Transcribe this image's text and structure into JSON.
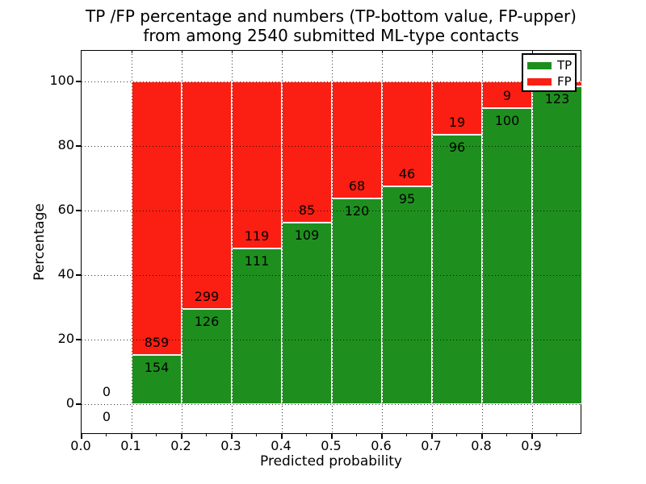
{
  "chart_data": {
    "type": "bar",
    "variant": "stacked-percentage",
    "title_lines": [
      "TP /FP percentage and numbers (TP-bottom value, FP-upper)",
      "from among 2540 submitted ML-type contacts"
    ],
    "xlabel": "Predicted probability",
    "ylabel": "Percentage",
    "xlim": [
      0.0,
      1.0
    ],
    "ylim": [
      -10,
      110
    ],
    "x_tick_labels": [
      "0.0",
      "0.1",
      "0.2",
      "0.3",
      "0.4",
      "0.5",
      "0.6",
      "0.7",
      "0.8",
      "0.9"
    ],
    "y_tick_values": [
      0,
      20,
      40,
      60,
      80,
      100
    ],
    "grid": "dotted",
    "legend": {
      "position": "upper right",
      "entries": [
        {
          "label": "TP",
          "color": "#1e8f1e"
        },
        {
          "label": "FP",
          "color": "#fb1e13"
        }
      ]
    },
    "colors": {
      "tp": "#1e8f1e",
      "fp": "#fb1e13"
    },
    "bins": [
      {
        "x_start": 0.0,
        "range": "0.0-0.1",
        "tp_count_label": "0",
        "fp_count_label": "0",
        "tp_pct": 0,
        "fp_pct": 0
      },
      {
        "x_start": 0.1,
        "range": "0.1-0.2",
        "tp_count_label": "154",
        "fp_count_label": "859",
        "tp_pct": 15.2,
        "fp_pct": 84.8
      },
      {
        "x_start": 0.2,
        "range": "0.2-0.3",
        "tp_count_label": "126",
        "fp_count_label": "299",
        "tp_pct": 29.6,
        "fp_pct": 70.4
      },
      {
        "x_start": 0.3,
        "range": "0.3-0.4",
        "tp_count_label": "111",
        "fp_count_label": "119",
        "tp_pct": 48.3,
        "fp_pct": 51.7
      },
      {
        "x_start": 0.4,
        "range": "0.4-0.5",
        "tp_count_label": "109",
        "fp_count_label": "85",
        "tp_pct": 56.2,
        "fp_pct": 43.8
      },
      {
        "x_start": 0.5,
        "range": "0.5-0.6",
        "tp_count_label": "120",
        "fp_count_label": "68",
        "tp_pct": 63.8,
        "fp_pct": 36.2
      },
      {
        "x_start": 0.6,
        "range": "0.6-0.7",
        "tp_count_label": "95",
        "fp_count_label": "46",
        "tp_pct": 67.4,
        "fp_pct": 32.6
      },
      {
        "x_start": 0.7,
        "range": "0.7-0.8",
        "tp_count_label": "96",
        "fp_count_label": "19",
        "tp_pct": 83.5,
        "fp_pct": 16.5
      },
      {
        "x_start": 0.8,
        "range": "0.8-0.9",
        "tp_count_label": "100",
        "fp_count_label": "9",
        "tp_pct": 91.7,
        "fp_pct": 8.3
      },
      {
        "x_start": 0.9,
        "range": "0.9-1.0",
        "tp_count_label": "123",
        "fp_count_label": "",
        "tp_pct": 98.4,
        "fp_pct": 1.6
      }
    ]
  }
}
